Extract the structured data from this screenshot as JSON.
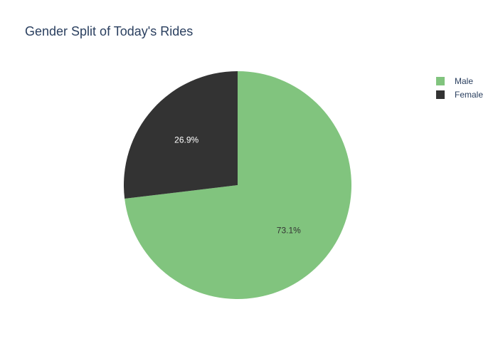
{
  "chart_data": {
    "type": "pie",
    "title": "Gender Split of Today's Rides",
    "slices": [
      {
        "label": "Male",
        "value": 73.1,
        "display": "73.1%",
        "color": "#81c47e",
        "text_color": "#333333"
      },
      {
        "label": "Female",
        "value": 26.9,
        "display": "26.9%",
        "color": "#333333",
        "text_color": "#ffffff"
      }
    ],
    "legend": {
      "position": "top-right",
      "entries": [
        "Male",
        "Female"
      ]
    },
    "start_angle_deg": 0,
    "direction": "clockwise"
  },
  "colors": {
    "title": "#2a3f5f",
    "background": "#ffffff"
  }
}
